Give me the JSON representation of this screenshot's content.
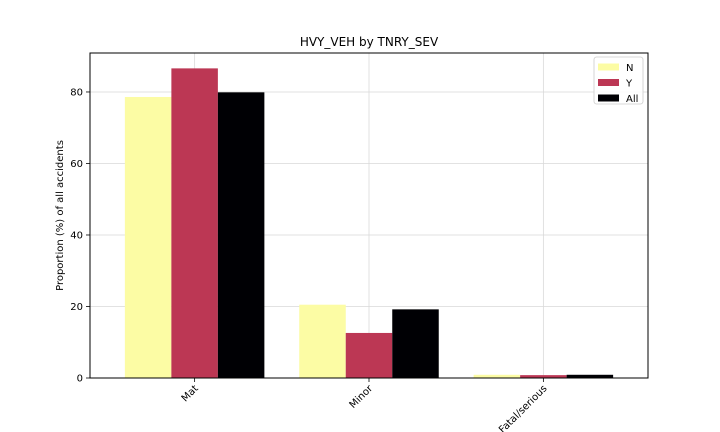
{
  "chart_data": {
    "type": "bar",
    "title": "HVY_VEH by TNRY_SEV",
    "xlabel": "",
    "ylabel": "Proportion (%) of all accidents",
    "categories": [
      "Mat",
      "Minor",
      "Fatal/serious"
    ],
    "series": [
      {
        "name": "N",
        "values": [
          78.6,
          20.5,
          0.9
        ],
        "color": "#fcfca4"
      },
      {
        "name": "Y",
        "values": [
          86.6,
          12.6,
          0.8
        ],
        "color": "#bc3754"
      },
      {
        "name": "All",
        "values": [
          79.9,
          19.2,
          0.9
        ],
        "color": "#000004"
      }
    ],
    "ylim": [
      0,
      90.9
    ],
    "yticks": [
      0,
      20,
      40,
      60,
      80
    ],
    "grid": true,
    "legend_position": "top-right"
  }
}
